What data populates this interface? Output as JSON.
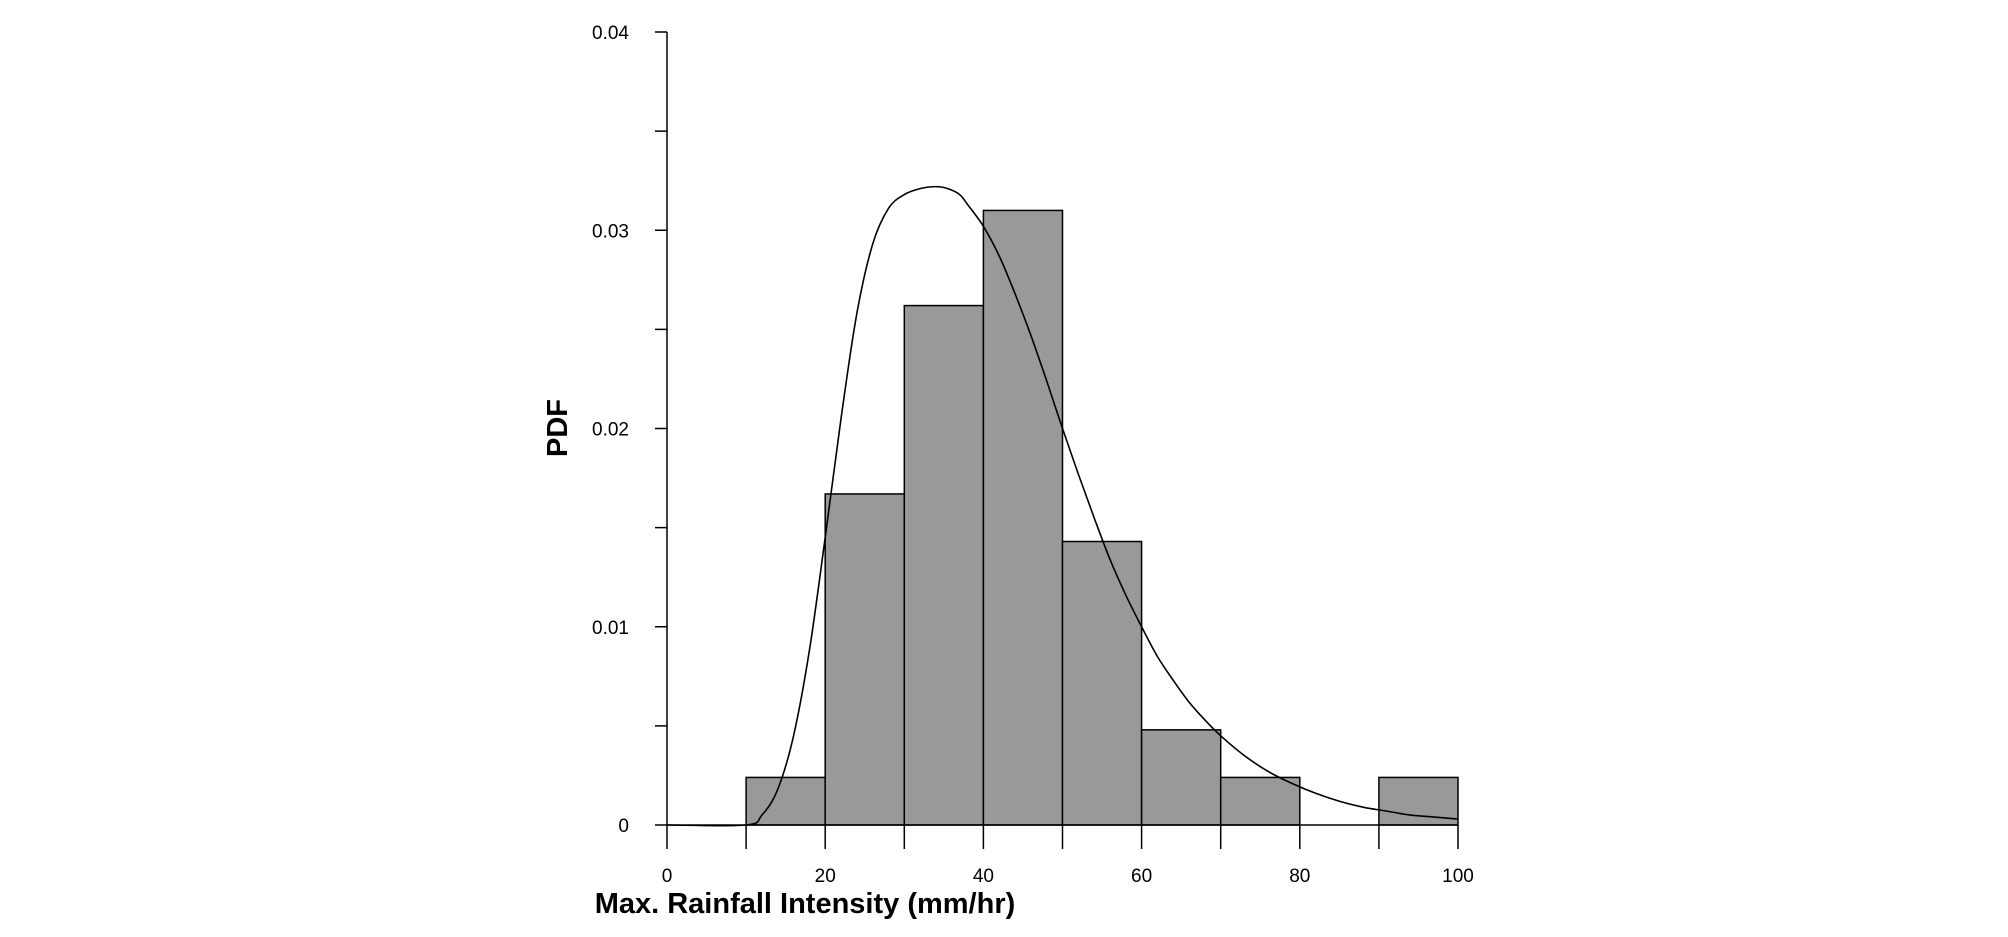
{
  "chart_data": {
    "type": "bar",
    "title": "",
    "xlabel": "Max. Rainfall Intensity (mm/hr)",
    "ylabel": "PDF",
    "xlim": [
      0,
      100
    ],
    "ylim": [
      0,
      0.04
    ],
    "x_ticks": [
      0,
      20,
      40,
      60,
      80,
      100
    ],
    "x_tick_labels": [
      "0",
      "20",
      "40",
      "60",
      "80",
      "100"
    ],
    "y_ticks": [
      0,
      0.01,
      0.02,
      0.03,
      0.04
    ],
    "y_tick_labels": [
      "0",
      "0.01",
      "0.02",
      "0.03",
      "0.04"
    ],
    "y_minor_ticks": [
      0.005,
      0.015,
      0.025,
      0.035
    ],
    "grid": false,
    "legend": "none",
    "bar_color": "#999999",
    "bar_edge_color": "#000000",
    "series": [
      {
        "type": "histogram",
        "bins": [
          {
            "x0": 10,
            "x1": 20,
            "value": 0.0024
          },
          {
            "x0": 20,
            "x1": 30,
            "value": 0.0167
          },
          {
            "x0": 30,
            "x1": 40,
            "value": 0.0262
          },
          {
            "x0": 40,
            "x1": 50,
            "value": 0.031
          },
          {
            "x0": 50,
            "x1": 60,
            "value": 0.0143
          },
          {
            "x0": 60,
            "x1": 70,
            "value": 0.0048
          },
          {
            "x0": 70,
            "x1": 80,
            "value": 0.0024
          },
          {
            "x0": 90,
            "x1": 100,
            "value": 0.0024
          }
        ]
      },
      {
        "type": "line",
        "x": [
          0,
          10,
          12,
          14,
          16,
          18,
          20,
          22,
          24,
          26,
          28,
          30,
          32,
          34,
          35.5,
          37,
          38,
          40,
          42,
          44,
          46,
          48,
          50,
          52,
          54,
          56,
          58,
          60,
          62,
          64,
          66,
          68,
          70,
          73,
          76,
          79,
          82,
          85,
          88,
          91,
          94,
          97,
          100
        ],
        "y": [
          0,
          0,
          0.0005,
          0.0018,
          0.0045,
          0.0088,
          0.0145,
          0.0205,
          0.0258,
          0.0293,
          0.0311,
          0.0318,
          0.0321,
          0.0322,
          0.0321,
          0.0318,
          0.0313,
          0.0302,
          0.0287,
          0.0268,
          0.0247,
          0.0224,
          0.02,
          0.0177,
          0.0155,
          0.0134,
          0.0116,
          0.01,
          0.0085,
          0.0073,
          0.0062,
          0.0053,
          0.0045,
          0.0035,
          0.0027,
          0.0021,
          0.0016,
          0.0012,
          0.0009,
          0.0007,
          0.0005,
          0.0004,
          0.0003
        ]
      }
    ]
  }
}
